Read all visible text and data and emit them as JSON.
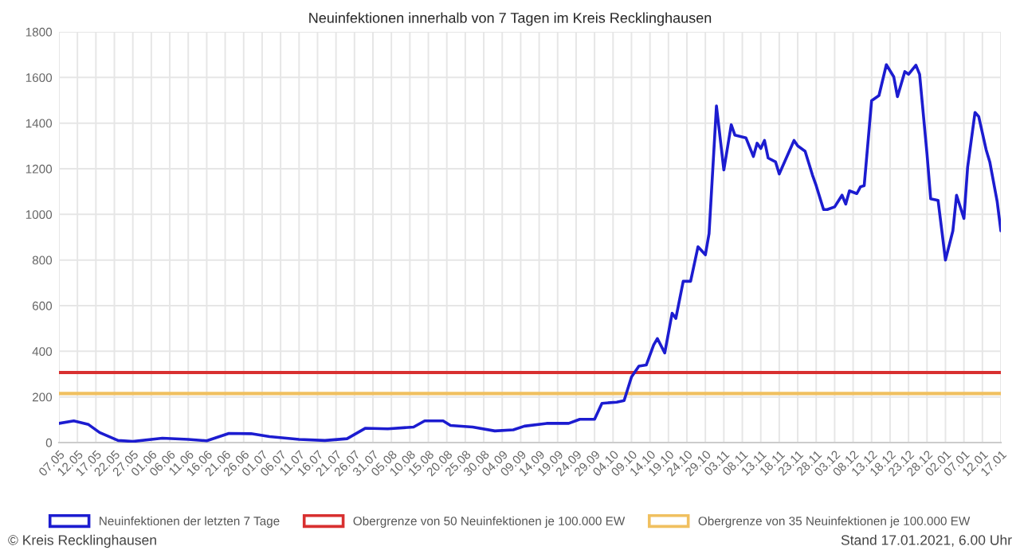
{
  "chart_data": {
    "type": "line",
    "title": "Neuinfektionen innerhalb von 7 Tagen im Kreis Recklinghausen",
    "x": [
      "2020-05-07",
      "2020-05-11",
      "2020-05-15",
      "2020-05-18",
      "2020-05-23",
      "2020-05-27",
      "2020-06-04",
      "2020-06-11",
      "2020-06-16",
      "2020-06-22",
      "2020-06-28",
      "2020-07-03",
      "2020-07-11",
      "2020-07-18",
      "2020-07-24",
      "2020-07-29",
      "2020-08-04",
      "2020-08-11",
      "2020-08-14",
      "2020-08-19",
      "2020-08-21",
      "2020-08-27",
      "2020-09-02",
      "2020-09-07",
      "2020-09-10",
      "2020-09-16",
      "2020-09-22",
      "2020-09-25",
      "2020-09-29",
      "2020-10-01",
      "2020-10-05",
      "2020-10-07",
      "2020-10-09",
      "2020-10-11",
      "2020-10-13",
      "2020-10-15",
      "2020-10-16",
      "2020-10-18",
      "2020-10-20",
      "2020-10-21",
      "2020-10-23",
      "2020-10-25",
      "2020-10-27",
      "2020-10-29",
      "2020-10-30",
      "2020-11-01",
      "2020-11-03",
      "2020-11-05",
      "2020-11-06",
      "2020-11-09",
      "2020-11-11",
      "2020-11-12",
      "2020-11-13",
      "2020-11-14",
      "2020-11-15",
      "2020-11-17",
      "2020-11-18",
      "2020-11-22",
      "2020-11-23",
      "2020-11-25",
      "2020-11-27",
      "2020-11-28",
      "2020-11-30",
      "2020-12-01",
      "2020-12-03",
      "2020-12-05",
      "2020-12-06",
      "2020-12-07",
      "2020-12-09",
      "2020-12-10",
      "2020-12-11",
      "2020-12-13",
      "2020-12-15",
      "2020-12-17",
      "2020-12-19",
      "2020-12-20",
      "2020-12-22",
      "2020-12-23",
      "2020-12-25",
      "2020-12-26",
      "2020-12-28",
      "2020-12-29",
      "2020-12-31",
      "2021-01-02",
      "2021-01-04",
      "2021-01-05",
      "2021-01-07",
      "2021-01-08",
      "2021-01-10",
      "2021-01-11",
      "2021-01-13",
      "2021-01-14",
      "2021-01-16",
      "2021-01-17"
    ],
    "series": [
      {
        "name": "Neuinfektionen der letzten 7 Tage",
        "color": "#1c1cd0",
        "values": [
          84,
          95,
          79,
          44,
          9,
          5,
          19,
          14,
          8,
          40,
          39,
          26,
          14,
          9,
          17,
          63,
          60,
          68,
          95,
          95,
          75,
          68,
          51,
          56,
          72,
          84,
          84,
          102,
          102,
          172,
          177,
          184,
          288,
          335,
          340,
          428,
          456,
          393,
          567,
          544,
          707,
          707,
          858,
          823,
          916,
          1475,
          1195,
          1393,
          1347,
          1335,
          1254,
          1312,
          1289,
          1324,
          1247,
          1230,
          1177,
          1324,
          1300,
          1277,
          1172,
          1126,
          1021,
          1021,
          1033,
          1084,
          1045,
          1103,
          1091,
          1121,
          1126,
          1498,
          1521,
          1656,
          1603,
          1516,
          1626,
          1614,
          1654,
          1614,
          1265,
          1068,
          1061,
          800,
          928,
          1084,
          982,
          1207,
          1447,
          1429,
          1284,
          1230,
          1056,
          928
        ]
      }
    ],
    "ref_lines": [
      {
        "axis": "y",
        "value": 307,
        "label": "Obergrenze von 50 Neuinfektionen je 100.000 EW",
        "color": "#d83030"
      },
      {
        "axis": "y",
        "value": 215,
        "label": "Obergrenze von 35 Neuinfektionen je 100.000 EW",
        "color": "#f0c060"
      }
    ],
    "xlim": [
      "2020-05-07",
      "2021-01-17"
    ],
    "xticks": [
      {
        "value": "2020-05-07",
        "label": "07.05"
      },
      {
        "value": "2020-05-12",
        "label": "12.05"
      },
      {
        "value": "2020-05-17",
        "label": "17.05"
      },
      {
        "value": "2020-05-22",
        "label": "22.05"
      },
      {
        "value": "2020-05-27",
        "label": "27.05"
      },
      {
        "value": "2020-06-01",
        "label": "01.06"
      },
      {
        "value": "2020-06-06",
        "label": "06.06"
      },
      {
        "value": "2020-06-11",
        "label": "11.06"
      },
      {
        "value": "2020-06-16",
        "label": "16.06"
      },
      {
        "value": "2020-06-21",
        "label": "21.06"
      },
      {
        "value": "2020-06-26",
        "label": "26.06"
      },
      {
        "value": "2020-07-01",
        "label": "01.07"
      },
      {
        "value": "2020-07-06",
        "label": "06.07"
      },
      {
        "value": "2020-07-11",
        "label": "11.07"
      },
      {
        "value": "2020-07-16",
        "label": "16.07"
      },
      {
        "value": "2020-07-21",
        "label": "21.07"
      },
      {
        "value": "2020-07-26",
        "label": "26.07"
      },
      {
        "value": "2020-07-31",
        "label": "31.07"
      },
      {
        "value": "2020-08-05",
        "label": "05.08"
      },
      {
        "value": "2020-08-10",
        "label": "10.08"
      },
      {
        "value": "2020-08-15",
        "label": "15.08"
      },
      {
        "value": "2020-08-20",
        "label": "20.08"
      },
      {
        "value": "2020-08-25",
        "label": "25.08"
      },
      {
        "value": "2020-08-30",
        "label": "30.08"
      },
      {
        "value": "2020-09-04",
        "label": "04.09"
      },
      {
        "value": "2020-09-09",
        "label": "09.09"
      },
      {
        "value": "2020-09-14",
        "label": "14.09"
      },
      {
        "value": "2020-09-19",
        "label": "19.09"
      },
      {
        "value": "2020-09-24",
        "label": "24.09"
      },
      {
        "value": "2020-09-29",
        "label": "29.09"
      },
      {
        "value": "2020-10-04",
        "label": "04.10"
      },
      {
        "value": "2020-10-09",
        "label": "09.10"
      },
      {
        "value": "2020-10-14",
        "label": "14.10"
      },
      {
        "value": "2020-10-19",
        "label": "19.10"
      },
      {
        "value": "2020-10-24",
        "label": "24.10"
      },
      {
        "value": "2020-10-29",
        "label": "29.10"
      },
      {
        "value": "2020-11-03",
        "label": "03.11"
      },
      {
        "value": "2020-11-08",
        "label": "08.11"
      },
      {
        "value": "2020-11-13",
        "label": "13.11"
      },
      {
        "value": "2020-11-18",
        "label": "18.11"
      },
      {
        "value": "2020-11-23",
        "label": "23.11"
      },
      {
        "value": "2020-11-28",
        "label": "28.11"
      },
      {
        "value": "2020-12-03",
        "label": "03.12"
      },
      {
        "value": "2020-12-08",
        "label": "08.12"
      },
      {
        "value": "2020-12-13",
        "label": "13.12"
      },
      {
        "value": "2020-12-18",
        "label": "18.12"
      },
      {
        "value": "2020-12-23",
        "label": "23.12"
      },
      {
        "value": "2020-12-28",
        "label": "28.12"
      },
      {
        "value": "2021-01-02",
        "label": "02.01"
      },
      {
        "value": "2021-01-07",
        "label": "07.01"
      },
      {
        "value": "2021-01-12",
        "label": "12.01"
      },
      {
        "value": "2021-01-17",
        "label": "17.01"
      }
    ],
    "ylim": [
      0,
      1800
    ],
    "yticks": [
      0,
      200,
      400,
      600,
      800,
      1000,
      1200,
      1400,
      1600,
      1800
    ],
    "grid": true,
    "legend": "bottom",
    "marker": "none",
    "line_style": "solid",
    "annotations": [
      "© Kreis Recklinghausen",
      "Stand 17.01.2021, 6.00 Uhr"
    ]
  }
}
